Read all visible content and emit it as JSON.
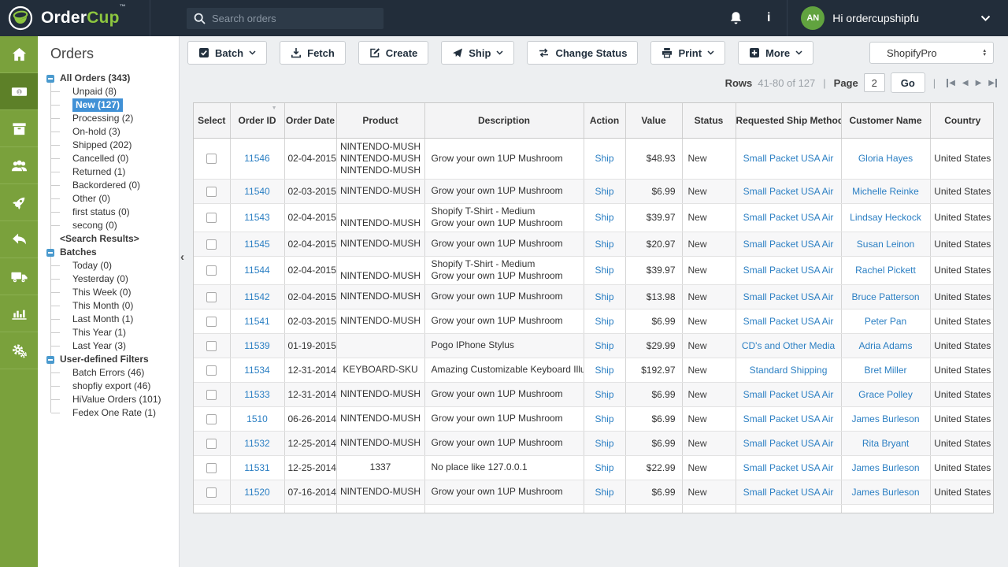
{
  "topbar": {
    "brand": {
      "primary": "Order",
      "secondary": "Cup",
      "trademark": "™"
    },
    "search": {
      "placeholder": "Search orders",
      "icon": "search-icon"
    },
    "icons": [
      "bell-icon",
      "info-icon",
      "chevron-down-icon"
    ],
    "user": {
      "initials": "AN",
      "greeting": "Hi ordercupshipfu"
    }
  },
  "rail": {
    "active_index": 1,
    "items": [
      "home",
      "money",
      "archive-box",
      "users",
      "rocket",
      "reply",
      "truck",
      "bar-chart",
      "gears"
    ]
  },
  "sidebar": {
    "panel_title": "Orders",
    "collapse_icon": "chevron-left-icon",
    "tree": [
      {
        "label": "All Orders (343)",
        "type": "parent",
        "toggle": true
      },
      {
        "label": "Unpaid (8)",
        "type": "child"
      },
      {
        "label": "New (127)",
        "type": "child",
        "selected": true
      },
      {
        "label": "Processing (2)",
        "type": "child"
      },
      {
        "label": "On-hold (3)",
        "type": "child"
      },
      {
        "label": "Shipped (202)",
        "type": "child"
      },
      {
        "label": "Cancelled (0)",
        "type": "child"
      },
      {
        "label": "Returned (1)",
        "type": "child"
      },
      {
        "label": "Backordered (0)",
        "type": "child"
      },
      {
        "label": "Other (0)",
        "type": "child"
      },
      {
        "label": "first status (0)",
        "type": "child"
      },
      {
        "label": "secong (0)",
        "type": "child"
      },
      {
        "label": "<Search Results>",
        "type": "parent",
        "toggle": false
      },
      {
        "label": "Batches",
        "type": "parent",
        "toggle": true
      },
      {
        "label": "Today (0)",
        "type": "child"
      },
      {
        "label": "Yesterday (0)",
        "type": "child"
      },
      {
        "label": "This Week (0)",
        "type": "child"
      },
      {
        "label": "This Month (0)",
        "type": "child"
      },
      {
        "label": "Last Month (1)",
        "type": "child"
      },
      {
        "label": "This Year (1)",
        "type": "child"
      },
      {
        "label": "Last Year (3)",
        "type": "child"
      },
      {
        "label": "User-defined Filters",
        "type": "parent",
        "toggle": true
      },
      {
        "label": "Batch Errors (46)",
        "type": "child"
      },
      {
        "label": "shopfiy export (46)",
        "type": "child"
      },
      {
        "label": "HiValue Orders (101)",
        "type": "child"
      },
      {
        "label": "Fedex One Rate (1)",
        "type": "child"
      }
    ]
  },
  "toolbar": {
    "buttons": [
      {
        "label": "Batch",
        "icon": "checkbox",
        "chevron": true
      },
      {
        "label": "Fetch",
        "icon": "download",
        "chevron": false
      },
      {
        "label": "Create",
        "icon": "edit",
        "chevron": false
      },
      {
        "label": "Ship",
        "icon": "send",
        "chevron": true
      },
      {
        "label": "Change Status",
        "icon": "swap",
        "chevron": false
      },
      {
        "label": "Print",
        "icon": "printer",
        "chevron": true
      },
      {
        "label": "More",
        "icon": "plus",
        "chevron": true
      }
    ],
    "store_selector": "ShopifyPro"
  },
  "pagination": {
    "rows_label": "Rows",
    "range": "41-80 of 127",
    "sep": "|",
    "page_label": "Page",
    "page_value": "2",
    "go_label": "Go",
    "nav_icons": [
      "first-page-icon",
      "prev-page-icon",
      "next-page-icon",
      "last-page-icon"
    ]
  },
  "table": {
    "columns": [
      "Select",
      "Order ID",
      "Order Date",
      "Product",
      "Description",
      "Action",
      "Value",
      "Status",
      "Requested Ship Method",
      "Customer Name",
      "Country"
    ],
    "sorted_column_index": 1,
    "rows": [
      {
        "id": "11546",
        "date": "02-04-2015",
        "product": [
          "NINTENDO-MUSH",
          "NINTENDO-MUSH",
          "NINTENDO-MUSH"
        ],
        "description": [
          "Grow your own 1UP Mushroom"
        ],
        "action": "Ship",
        "value": "$48.93",
        "status": "New",
        "method": "Small Packet USA Air",
        "customer": "Gloria Hayes",
        "country": "United States"
      },
      {
        "id": "11540",
        "date": "02-03-2015",
        "product": [
          "NINTENDO-MUSH"
        ],
        "description": [
          "Grow your own 1UP Mushroom"
        ],
        "action": "Ship",
        "value": "$6.99",
        "status": "New",
        "method": "Small Packet USA Air",
        "customer": "Michelle Reinke",
        "country": "United States"
      },
      {
        "id": "11543",
        "date": "02-04-2015",
        "product": [
          "",
          "NINTENDO-MUSH"
        ],
        "description": [
          "Shopify T-Shirt - Medium",
          "Grow your own 1UP Mushroom"
        ],
        "action": "Ship",
        "value": "$39.97",
        "status": "New",
        "method": "Small Packet USA Air",
        "customer": "Lindsay Heckock",
        "country": "United States"
      },
      {
        "id": "11545",
        "date": "02-04-2015",
        "product": [
          "NINTENDO-MUSH"
        ],
        "description": [
          "Grow your own 1UP Mushroom"
        ],
        "action": "Ship",
        "value": "$20.97",
        "status": "New",
        "method": "Small Packet USA Air",
        "customer": "Susan Leinon",
        "country": "United States"
      },
      {
        "id": "11544",
        "date": "02-04-2015",
        "product": [
          "",
          "NINTENDO-MUSH"
        ],
        "description": [
          "Shopify T-Shirt - Medium",
          "Grow your own 1UP Mushroom"
        ],
        "action": "Ship",
        "value": "$39.97",
        "status": "New",
        "method": "Small Packet USA Air",
        "customer": "Rachel Pickett",
        "country": "United States"
      },
      {
        "id": "11542",
        "date": "02-04-2015",
        "product": [
          "NINTENDO-MUSH"
        ],
        "description": [
          "Grow your own 1UP Mushroom"
        ],
        "action": "Ship",
        "value": "$13.98",
        "status": "New",
        "method": "Small Packet USA Air",
        "customer": "Bruce Patterson",
        "country": "United States"
      },
      {
        "id": "11541",
        "date": "02-03-2015",
        "product": [
          "NINTENDO-MUSH"
        ],
        "description": [
          "Grow your own 1UP Mushroom"
        ],
        "action": "Ship",
        "value": "$6.99",
        "status": "New",
        "method": "Small Packet USA Air",
        "customer": "Peter Pan",
        "country": "United States"
      },
      {
        "id": "11539",
        "date": "01-19-2015",
        "product": [
          ""
        ],
        "description": [
          "Pogo IPhone Stylus"
        ],
        "action": "Ship",
        "value": "$29.99",
        "status": "New",
        "method": "CD's and Other Media",
        "customer": "Adria Adams",
        "country": "United States"
      },
      {
        "id": "11534",
        "date": "12-31-2014",
        "product": [
          "KEYBOARD-SKU"
        ],
        "description": [
          "Amazing Customizable Keyboard Illur"
        ],
        "action": "Ship",
        "value": "$192.97",
        "status": "New",
        "method": "Standard Shipping",
        "customer": "Bret Miller",
        "country": "United States"
      },
      {
        "id": "11533",
        "date": "12-31-2014",
        "product": [
          "NINTENDO-MUSH"
        ],
        "description": [
          "Grow your own 1UP Mushroom"
        ],
        "action": "Ship",
        "value": "$6.99",
        "status": "New",
        "method": "Small Packet USA Air",
        "customer": "Grace Polley",
        "country": "United States"
      },
      {
        "id": "1510",
        "date": "06-26-2014",
        "product": [
          "NINTENDO-MUSH"
        ],
        "description": [
          "Grow your own 1UP Mushroom"
        ],
        "action": "Ship",
        "value": "$6.99",
        "status": "New",
        "method": "Small Packet USA Air",
        "customer": "James Burleson",
        "country": "United States"
      },
      {
        "id": "11532",
        "date": "12-25-2014",
        "product": [
          "NINTENDO-MUSH"
        ],
        "description": [
          "Grow your own 1UP Mushroom"
        ],
        "action": "Ship",
        "value": "$6.99",
        "status": "New",
        "method": "Small Packet USA Air",
        "customer": "Rita Bryant",
        "country": "United States"
      },
      {
        "id": "11531",
        "date": "12-25-2014",
        "product": [
          "1337"
        ],
        "description": [
          "No place like 127.0.0.1"
        ],
        "action": "Ship",
        "value": "$22.99",
        "status": "New",
        "method": "Small Packet USA Air",
        "customer": "James Burleson",
        "country": "United States"
      },
      {
        "id": "11520",
        "date": "07-16-2014",
        "product": [
          "NINTENDO-MUSH"
        ],
        "description": [
          "Grow your own 1UP Mushroom"
        ],
        "action": "Ship",
        "value": "$6.99",
        "status": "New",
        "method": "Small Packet USA Air",
        "customer": "James Burleson",
        "country": "United States"
      }
    ]
  },
  "colors": {
    "topbar_bg": "#222d3a",
    "rail_green": "#7aa13c",
    "rail_active_green": "#5d8028",
    "brand_green": "#8dc63f",
    "selected_tree_blue": "#4191d6",
    "link_blue": "#2b7fc3",
    "main_bg": "#edeff1"
  }
}
